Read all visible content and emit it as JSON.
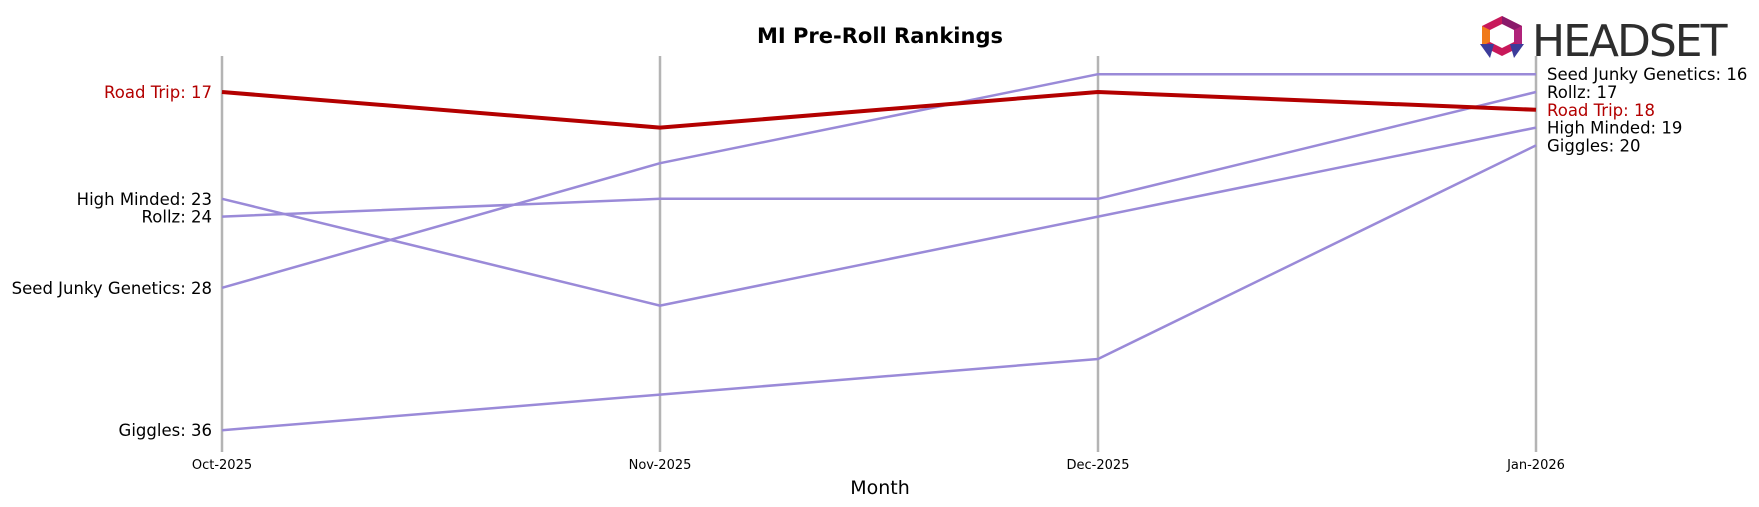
{
  "chart_data": {
    "type": "line",
    "title": "MI Pre-Roll Rankings",
    "xlabel": "Month",
    "ylabel": "",
    "x": [
      "Oct-2025",
      "Nov-2025",
      "Dec-2025",
      "Jan-2026"
    ],
    "y_inverted": true,
    "grid": "vertical",
    "series": [
      {
        "name": "Road Trip",
        "values": [
          17,
          19,
          17,
          18
        ],
        "color": "#b30000",
        "highlight": true,
        "start_label": "Road Trip: 17",
        "end_label": "Road Trip: 18"
      },
      {
        "name": "High Minded",
        "values": [
          23,
          29,
          24,
          19
        ],
        "color": "#9a8ad8",
        "highlight": false,
        "start_label": "High Minded: 23",
        "end_label": "High Minded: 19"
      },
      {
        "name": "Rollz",
        "values": [
          24,
          23,
          23,
          17
        ],
        "color": "#9a8ad8",
        "highlight": false,
        "start_label": "Rollz: 24",
        "end_label": "Rollz: 17"
      },
      {
        "name": "Seed Junky Genetics",
        "values": [
          28,
          21,
          16,
          16
        ],
        "color": "#9a8ad8",
        "highlight": false,
        "start_label": "Seed Junky Genetics: 28",
        "end_label": "Seed Junky Genetics: 16"
      },
      {
        "name": "Giggles",
        "values": [
          36,
          34,
          32,
          20
        ],
        "color": "#9a8ad8",
        "highlight": false,
        "start_label": "Giggles: 36",
        "end_label": "Giggles: 20"
      }
    ]
  },
  "logo": {
    "text": "HEADSET"
  }
}
